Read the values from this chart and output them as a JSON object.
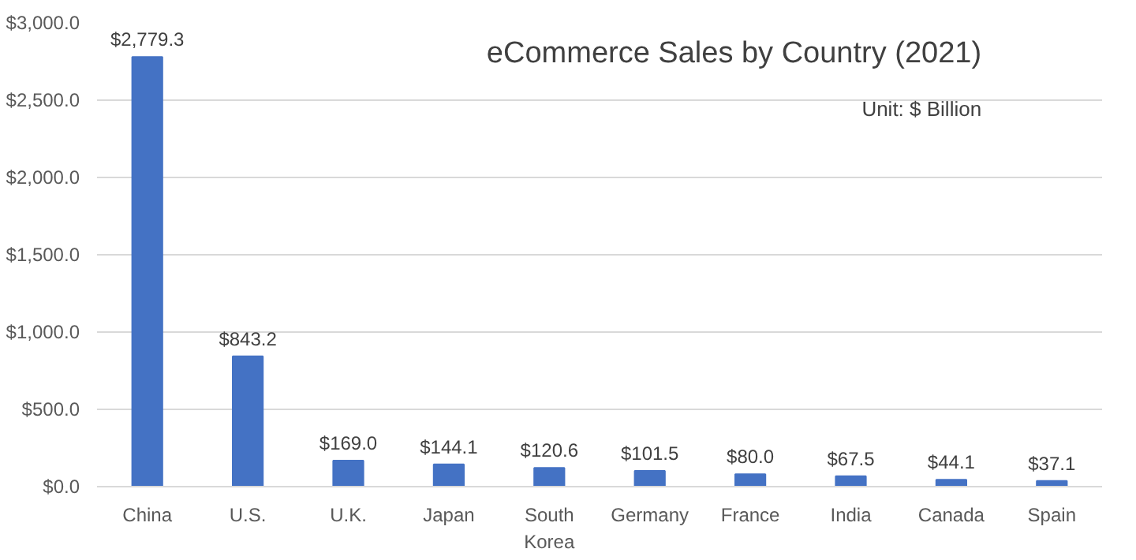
{
  "chart_data": {
    "type": "bar",
    "title": "eCommerce Sales by Country (2021)",
    "annotations": [
      "Unit: $ Billion"
    ],
    "categories": [
      "China",
      "U.S.",
      "U.K.",
      "Japan",
      "South Korea",
      "Germany",
      "France",
      "India",
      "Canada",
      "Spain"
    ],
    "values": [
      2779.3,
      843.2,
      169.0,
      144.1,
      120.6,
      101.5,
      80.0,
      67.5,
      44.1,
      37.1
    ],
    "value_labels": [
      "$2,779.3",
      "$843.2",
      "$169.0",
      "$144.1",
      "$120.6",
      "$101.5",
      "$80.0",
      "$67.5",
      "$44.1",
      "$37.1"
    ],
    "color": "#4472c4",
    "ylim": [
      0,
      3000
    ],
    "yticks": [
      {
        "value": 0,
        "label": "$0.0"
      },
      {
        "value": 500,
        "label": "$500.0"
      },
      {
        "value": 1000,
        "label": "$1,000.0"
      },
      {
        "value": 1500,
        "label": "$1,500.0"
      },
      {
        "value": 2000,
        "label": "$2,000.0"
      },
      {
        "value": 2500,
        "label": "$2,500.0"
      },
      {
        "value": 3000,
        "label": "$3,000.0"
      }
    ],
    "grid": "y"
  }
}
